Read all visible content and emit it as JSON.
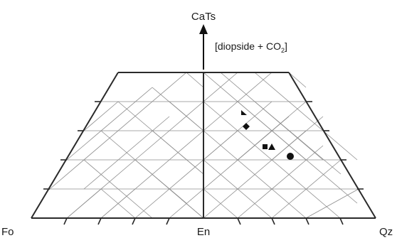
{
  "diagram": {
    "vertices": {
      "left": "Fo",
      "center": "En",
      "right": "Qz"
    },
    "axis": {
      "top": "CaTs",
      "note": {
        "prefix": "[diopside + CO",
        "subscript": "2",
        "suffix": "]"
      }
    },
    "colors": {
      "outline": "#2a2a2a",
      "grid": "#8c8c8c",
      "marker": "#111111"
    },
    "samples": [
      {
        "symbol": "triangle",
        "size": "small"
      },
      {
        "symbol": "diamond",
        "size": "normal"
      },
      {
        "symbol": "square",
        "size": "small"
      },
      {
        "symbol": "triangle",
        "size": "normal"
      },
      {
        "symbol": "circle",
        "size": "normal"
      }
    ]
  }
}
